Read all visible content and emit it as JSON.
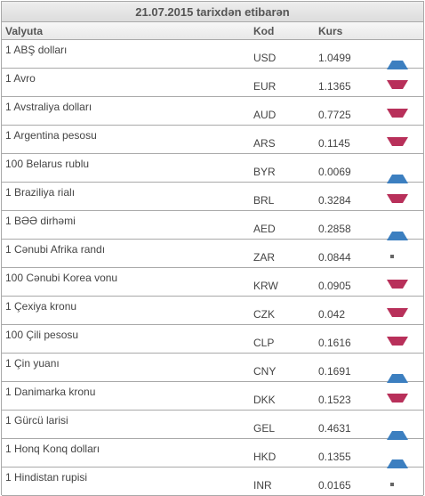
{
  "title": "21.07.2015 tarixdən etibarən",
  "columns": {
    "name": "Valyuta",
    "code": "Kod",
    "rate": "Kurs"
  },
  "colors": {
    "up": "#3c7fc0",
    "down": "#b8305a",
    "same": "#666666"
  },
  "rows": [
    {
      "name": "1 ABŞ dolları",
      "code": "USD",
      "rate": "1.0499",
      "trend": "up"
    },
    {
      "name": "1 Avro",
      "code": "EUR",
      "rate": "1.1365",
      "trend": "down"
    },
    {
      "name": "1 Avstraliya dolları",
      "code": "AUD",
      "rate": "0.7725",
      "trend": "down"
    },
    {
      "name": "1 Argentina pesosu",
      "code": "ARS",
      "rate": "0.1145",
      "trend": "down"
    },
    {
      "name": "100 Belarus rublu",
      "code": "BYR",
      "rate": "0.0069",
      "trend": "up"
    },
    {
      "name": "1 Braziliya rialı",
      "code": "BRL",
      "rate": "0.3284",
      "trend": "down"
    },
    {
      "name": "1 BƏƏ dirhəmi",
      "code": "AED",
      "rate": "0.2858",
      "trend": "up"
    },
    {
      "name": "1 Cənubi Afrika randı",
      "code": "ZAR",
      "rate": "0.0844",
      "trend": "same"
    },
    {
      "name": "100 Cənubi Korea vonu",
      "code": "KRW",
      "rate": "0.0905",
      "trend": "down"
    },
    {
      "name": "1 Çexiya kronu",
      "code": "CZK",
      "rate": "0.042",
      "trend": "down"
    },
    {
      "name": "100 Çili pesosu",
      "code": "CLP",
      "rate": "0.1616",
      "trend": "down"
    },
    {
      "name": "1 Çin yuanı",
      "code": "CNY",
      "rate": "0.1691",
      "trend": "up"
    },
    {
      "name": "1 Danimarka kronu",
      "code": "DKK",
      "rate": "0.1523",
      "trend": "down"
    },
    {
      "name": "1 Gürcü larisi",
      "code": "GEL",
      "rate": "0.4631",
      "trend": "up"
    },
    {
      "name": "1 Honq Konq dolları",
      "code": "HKD",
      "rate": "0.1355",
      "trend": "up"
    },
    {
      "name": "1 Hindistan rupisi",
      "code": "INR",
      "rate": "0.0165",
      "trend": "same"
    }
  ]
}
